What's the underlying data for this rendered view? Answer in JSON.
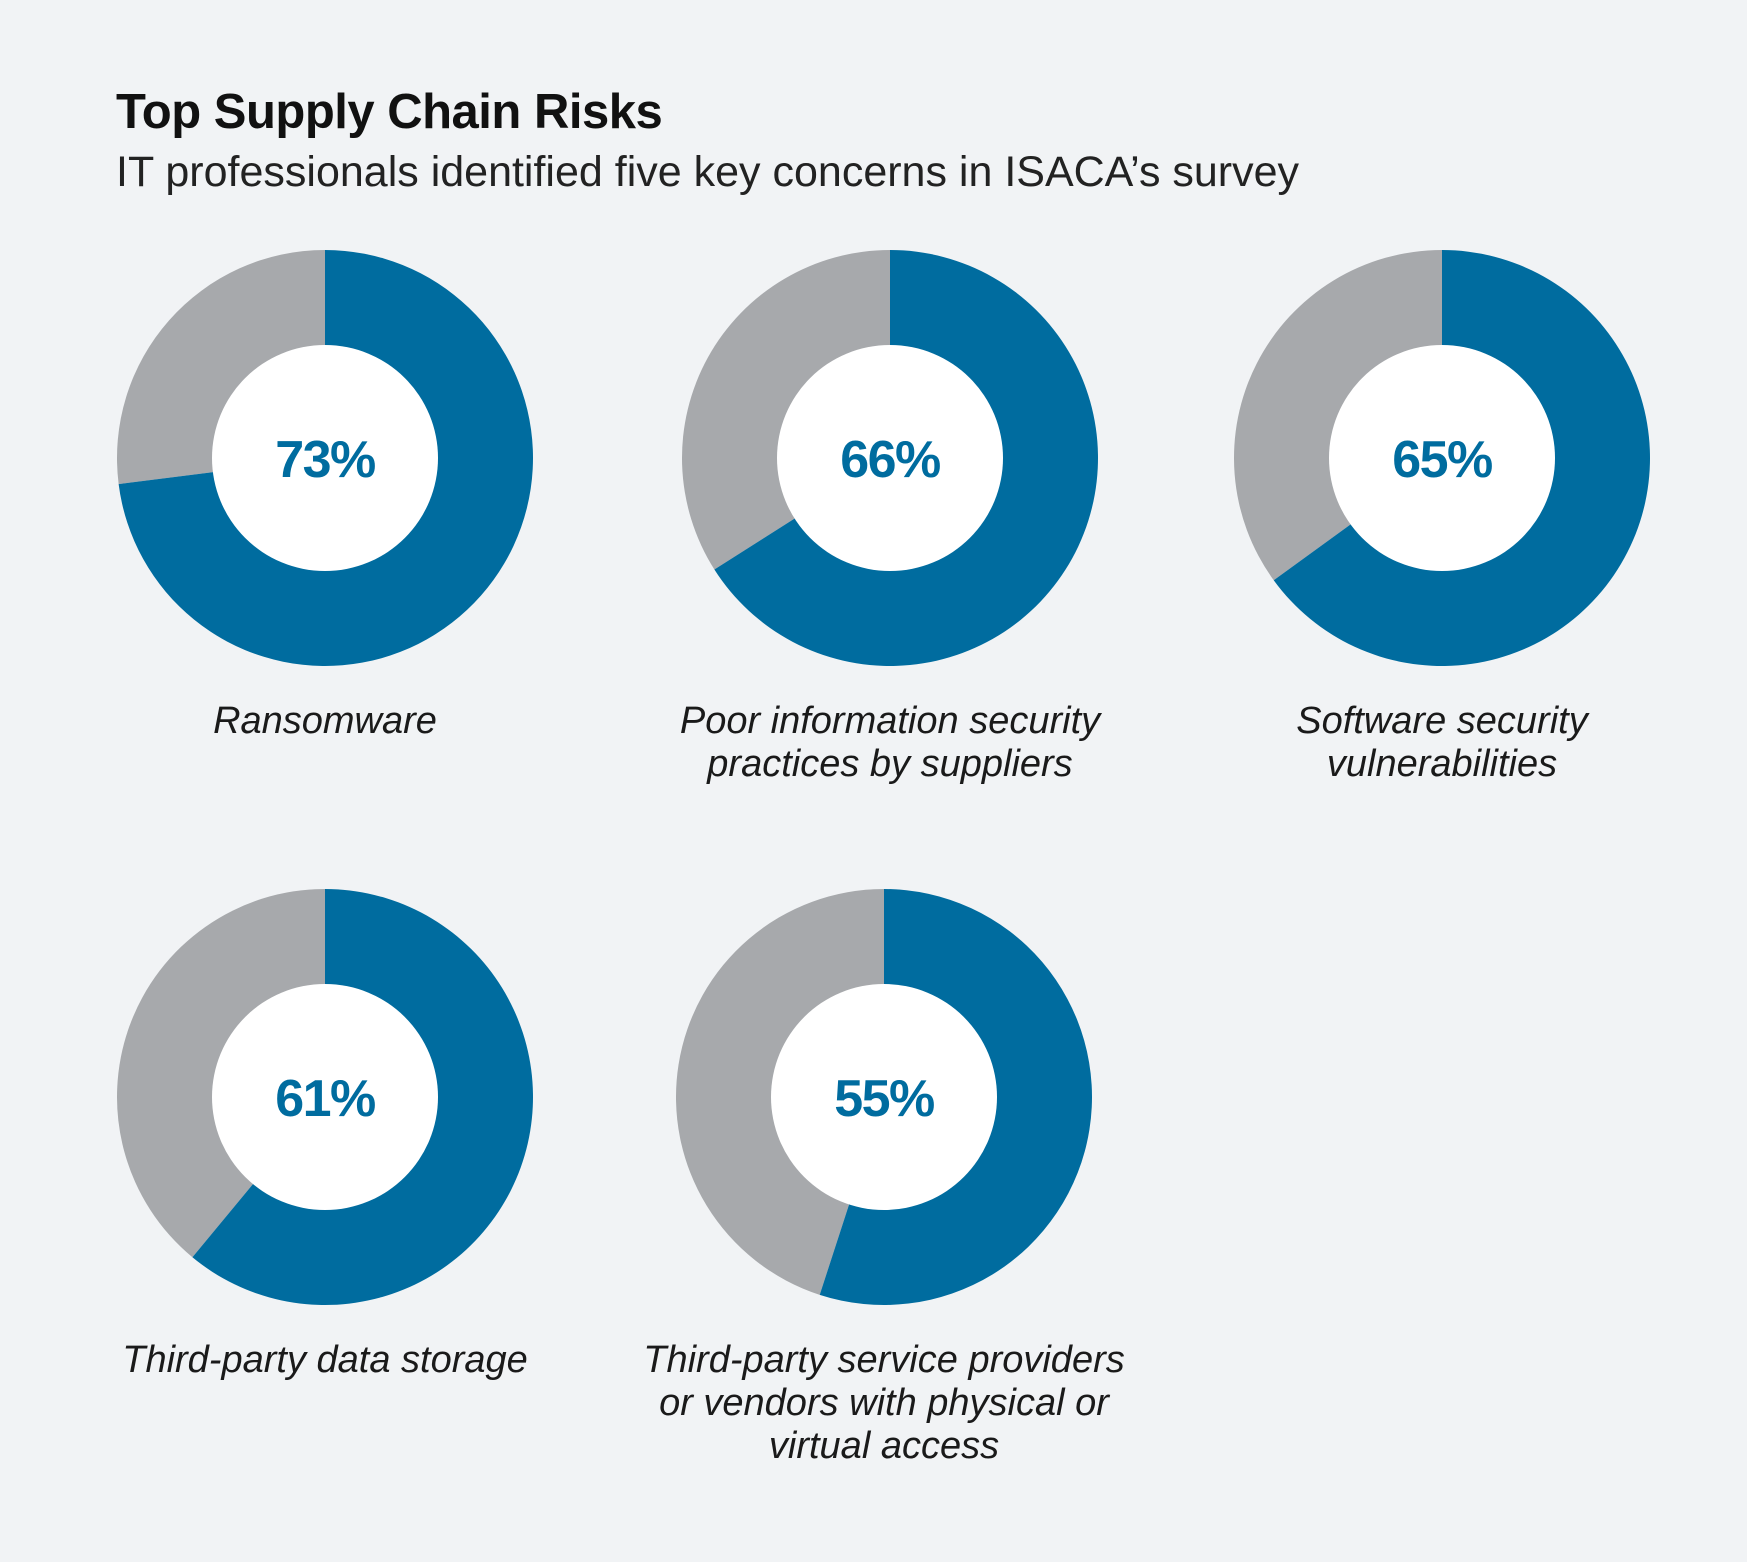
{
  "header": {
    "title": "Top Supply Chain Risks",
    "subtitle": "IT professionals identified five key concerns in ISACA’s survey"
  },
  "colors": {
    "value": "#006c9f",
    "remainder": "#a7a9ac",
    "center": "#ffffff",
    "background": "#f1f3f5"
  },
  "chart_data": [
    {
      "type": "pie",
      "value": 73,
      "label": "73%",
      "caption": "Ransomware"
    },
    {
      "type": "pie",
      "value": 66,
      "label": "66%",
      "caption": "Poor information security practices by suppliers"
    },
    {
      "type": "pie",
      "value": 65,
      "label": "65%",
      "caption": "Software security vulnerabilities"
    },
    {
      "type": "pie",
      "value": 61,
      "label": "61%",
      "caption": "Third-party data storage"
    },
    {
      "type": "pie",
      "value": 55,
      "label": "55%",
      "caption": "Third-party service providers or vendors with physical or virtual access"
    }
  ]
}
